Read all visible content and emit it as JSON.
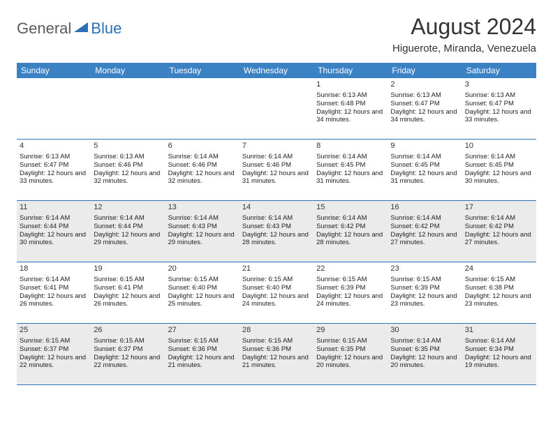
{
  "logo": {
    "general": "General",
    "blue": "Blue"
  },
  "title": "August 2024",
  "location": "Higuerote, Miranda, Venezuela",
  "colors": {
    "header_bg": "#3b82c4",
    "header_text": "#ffffff",
    "border": "#2d6fb4",
    "shaded": "#ebebeb",
    "logo_gray": "#5a5a5a",
    "logo_blue": "#2d6fb4"
  },
  "day_headers": [
    "Sunday",
    "Monday",
    "Tuesday",
    "Wednesday",
    "Thursday",
    "Friday",
    "Saturday"
  ],
  "weeks": [
    [
      {
        "blank": true
      },
      {
        "blank": true
      },
      {
        "blank": true
      },
      {
        "blank": true
      },
      {
        "n": "1",
        "sr": "6:13 AM",
        "ss": "6:48 PM",
        "dl": "12 hours and 34 minutes."
      },
      {
        "n": "2",
        "sr": "6:13 AM",
        "ss": "6:47 PM",
        "dl": "12 hours and 34 minutes."
      },
      {
        "n": "3",
        "sr": "6:13 AM",
        "ss": "6:47 PM",
        "dl": "12 hours and 33 minutes."
      }
    ],
    [
      {
        "n": "4",
        "sr": "6:13 AM",
        "ss": "6:47 PM",
        "dl": "12 hours and 33 minutes."
      },
      {
        "n": "5",
        "sr": "6:13 AM",
        "ss": "6:46 PM",
        "dl": "12 hours and 32 minutes."
      },
      {
        "n": "6",
        "sr": "6:14 AM",
        "ss": "6:46 PM",
        "dl": "12 hours and 32 minutes."
      },
      {
        "n": "7",
        "sr": "6:14 AM",
        "ss": "6:46 PM",
        "dl": "12 hours and 31 minutes."
      },
      {
        "n": "8",
        "sr": "6:14 AM",
        "ss": "6:45 PM",
        "dl": "12 hours and 31 minutes."
      },
      {
        "n": "9",
        "sr": "6:14 AM",
        "ss": "6:45 PM",
        "dl": "12 hours and 31 minutes."
      },
      {
        "n": "10",
        "sr": "6:14 AM",
        "ss": "6:45 PM",
        "dl": "12 hours and 30 minutes."
      }
    ],
    [
      {
        "n": "11",
        "sr": "6:14 AM",
        "ss": "6:44 PM",
        "dl": "12 hours and 30 minutes.",
        "shaded": true
      },
      {
        "n": "12",
        "sr": "6:14 AM",
        "ss": "6:44 PM",
        "dl": "12 hours and 29 minutes.",
        "shaded": true
      },
      {
        "n": "13",
        "sr": "6:14 AM",
        "ss": "6:43 PM",
        "dl": "12 hours and 29 minutes.",
        "shaded": true
      },
      {
        "n": "14",
        "sr": "6:14 AM",
        "ss": "6:43 PM",
        "dl": "12 hours and 28 minutes.",
        "shaded": true
      },
      {
        "n": "15",
        "sr": "6:14 AM",
        "ss": "6:42 PM",
        "dl": "12 hours and 28 minutes.",
        "shaded": true
      },
      {
        "n": "16",
        "sr": "6:14 AM",
        "ss": "6:42 PM",
        "dl": "12 hours and 27 minutes.",
        "shaded": true
      },
      {
        "n": "17",
        "sr": "6:14 AM",
        "ss": "6:42 PM",
        "dl": "12 hours and 27 minutes.",
        "shaded": true
      }
    ],
    [
      {
        "n": "18",
        "sr": "6:14 AM",
        "ss": "6:41 PM",
        "dl": "12 hours and 26 minutes."
      },
      {
        "n": "19",
        "sr": "6:15 AM",
        "ss": "6:41 PM",
        "dl": "12 hours and 26 minutes."
      },
      {
        "n": "20",
        "sr": "6:15 AM",
        "ss": "6:40 PM",
        "dl": "12 hours and 25 minutes."
      },
      {
        "n": "21",
        "sr": "6:15 AM",
        "ss": "6:40 PM",
        "dl": "12 hours and 24 minutes."
      },
      {
        "n": "22",
        "sr": "6:15 AM",
        "ss": "6:39 PM",
        "dl": "12 hours and 24 minutes."
      },
      {
        "n": "23",
        "sr": "6:15 AM",
        "ss": "6:39 PM",
        "dl": "12 hours and 23 minutes."
      },
      {
        "n": "24",
        "sr": "6:15 AM",
        "ss": "6:38 PM",
        "dl": "12 hours and 23 minutes."
      }
    ],
    [
      {
        "n": "25",
        "sr": "6:15 AM",
        "ss": "6:37 PM",
        "dl": "12 hours and 22 minutes.",
        "shaded": true
      },
      {
        "n": "26",
        "sr": "6:15 AM",
        "ss": "6:37 PM",
        "dl": "12 hours and 22 minutes.",
        "shaded": true
      },
      {
        "n": "27",
        "sr": "6:15 AM",
        "ss": "6:36 PM",
        "dl": "12 hours and 21 minutes.",
        "shaded": true
      },
      {
        "n": "28",
        "sr": "6:15 AM",
        "ss": "6:36 PM",
        "dl": "12 hours and 21 minutes.",
        "shaded": true
      },
      {
        "n": "29",
        "sr": "6:15 AM",
        "ss": "6:35 PM",
        "dl": "12 hours and 20 minutes.",
        "shaded": true
      },
      {
        "n": "30",
        "sr": "6:14 AM",
        "ss": "6:35 PM",
        "dl": "12 hours and 20 minutes.",
        "shaded": true
      },
      {
        "n": "31",
        "sr": "6:14 AM",
        "ss": "6:34 PM",
        "dl": "12 hours and 19 minutes.",
        "shaded": true
      }
    ]
  ],
  "labels": {
    "sunrise": "Sunrise: ",
    "sunset": "Sunset: ",
    "daylight": "Daylight: "
  }
}
